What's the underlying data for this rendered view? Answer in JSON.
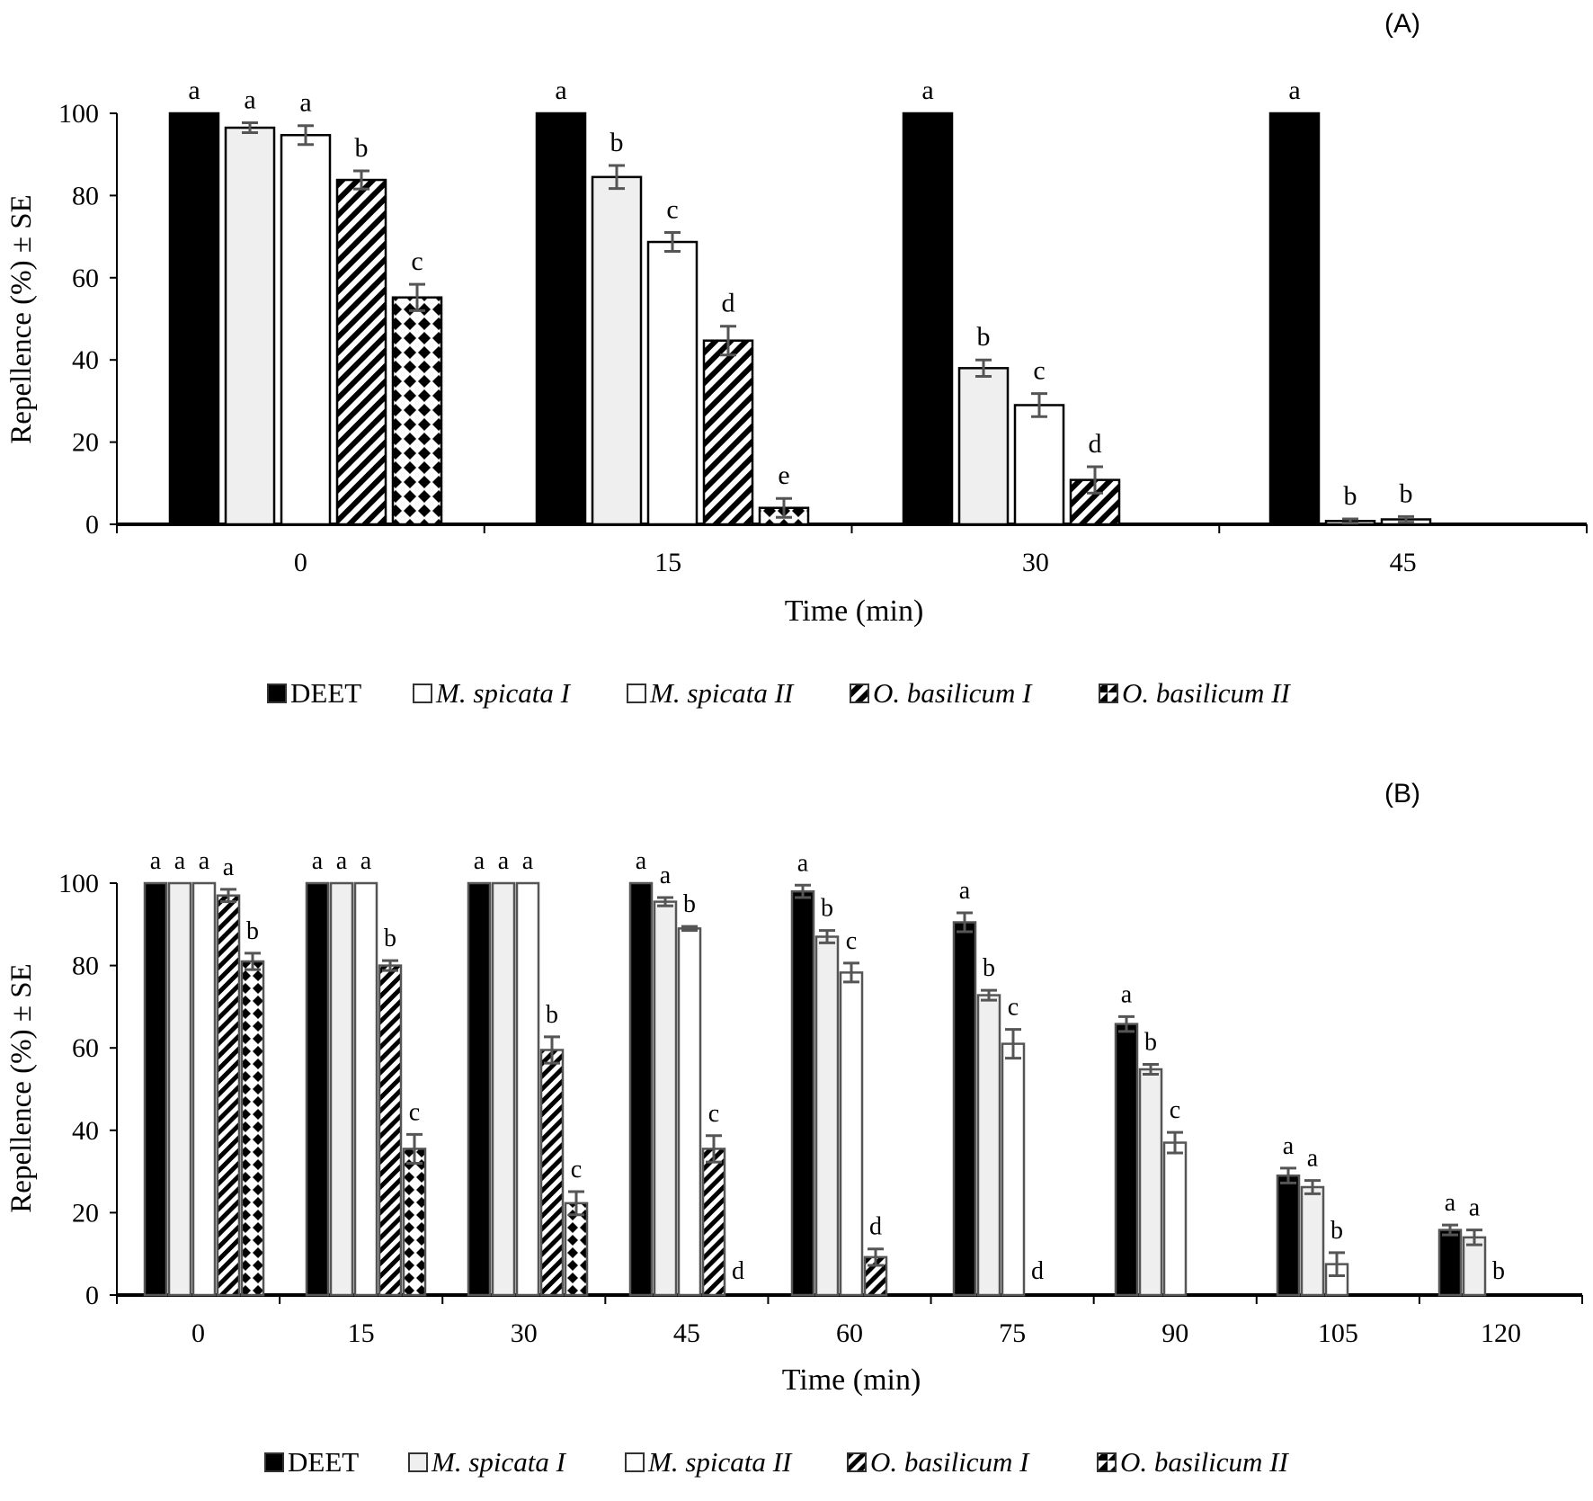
{
  "chart_data": [
    {
      "type": "bar",
      "panel_label": "(A)",
      "xlabel": "Time (min)",
      "ylabel": "Repellence (%) ± SE",
      "ylim": [
        0,
        100
      ],
      "yticks": [
        "0",
        "20",
        "40",
        "60",
        "80",
        "100"
      ],
      "categories": [
        "0",
        "15",
        "30",
        "45"
      ],
      "legend": [
        "DEET",
        "M. spicata I",
        "M. spicata II",
        "O. basilicum I",
        "O. basilicum II"
      ],
      "series": [
        {
          "name": "DEET",
          "values": [
            100,
            100,
            100,
            100
          ],
          "se": [
            0,
            0,
            0,
            0
          ],
          "letters": [
            "a",
            "a",
            "a",
            "a"
          ]
        },
        {
          "name": "M. spicata I",
          "values": [
            96.5,
            84.5,
            38,
            0.8
          ],
          "se": [
            1.2,
            2.8,
            2,
            0.5
          ],
          "letters": [
            "a",
            "b",
            "b",
            "b"
          ]
        },
        {
          "name": "M. spicata II",
          "values": [
            94.7,
            68.7,
            29,
            1.2
          ],
          "se": [
            2.3,
            2.3,
            2.8,
            0.7
          ],
          "letters": [
            "a",
            "c",
            "c",
            "b"
          ]
        },
        {
          "name": "O. basilicum I",
          "values": [
            83.8,
            44.7,
            10.8,
            null
          ],
          "se": [
            2.2,
            3.5,
            3.2,
            null
          ],
          "letters": [
            "b",
            "d",
            "d",
            null
          ]
        },
        {
          "name": "O. basilicum II",
          "values": [
            55.2,
            4,
            null,
            null
          ],
          "se": [
            3.2,
            2.3,
            null,
            null
          ],
          "letters": [
            "c",
            "e",
            null,
            null
          ]
        }
      ]
    },
    {
      "type": "bar",
      "panel_label": "(B)",
      "xlabel": "Time (min)",
      "ylabel": "Repellence (%) ± SE",
      "ylim": [
        0,
        100
      ],
      "yticks": [
        "0",
        "20",
        "40",
        "60",
        "80",
        "100"
      ],
      "categories": [
        "0",
        "15",
        "30",
        "45",
        "60",
        "75",
        "90",
        "105",
        "120"
      ],
      "legend": [
        "DEET",
        "M. spicata I",
        "M. spicata II",
        "O. basilicum I",
        "O. basilicum II"
      ],
      "series": [
        {
          "name": "DEET",
          "values": [
            100,
            100,
            100,
            100,
            98,
            90.5,
            65.8,
            29,
            15.8
          ],
          "se": [
            0,
            0,
            0,
            0,
            1.5,
            2.3,
            1.8,
            1.8,
            1.2
          ],
          "letters": [
            "a",
            "a",
            "a",
            "a",
            "a",
            "a",
            "a",
            "a",
            "a"
          ]
        },
        {
          "name": "M. spicata I",
          "values": [
            100,
            100,
            100,
            95.5,
            87,
            72.8,
            54.8,
            26.2,
            14
          ],
          "se": [
            0,
            0,
            0,
            1,
            1.5,
            1.2,
            1.2,
            1.6,
            1.8
          ],
          "letters": [
            "a",
            "a",
            "a",
            "a",
            "b",
            "b",
            "b",
            "a",
            "a"
          ]
        },
        {
          "name": "M. spicata II",
          "values": [
            100,
            100,
            100,
            89,
            78.3,
            61,
            37,
            7.5,
            null
          ],
          "se": [
            0,
            0,
            0,
            0.5,
            2.3,
            3.5,
            2.5,
            2.8,
            null
          ],
          "letters": [
            "a",
            "a",
            "a",
            "b",
            "c",
            "c",
            "c",
            "b",
            "b"
          ]
        },
        {
          "name": "O. basilicum I",
          "values": [
            97,
            80,
            59.5,
            35.5,
            9.2,
            null,
            null,
            null,
            null
          ],
          "se": [
            1.5,
            1.2,
            3.2,
            3.2,
            2,
            null,
            null,
            null,
            null
          ],
          "letters": [
            "a",
            "b",
            "b",
            "c",
            "d",
            "d",
            null,
            null,
            null
          ]
        },
        {
          "name": "O. basilicum II",
          "values": [
            81,
            35.5,
            22.3,
            null,
            null,
            null,
            null,
            null,
            null
          ],
          "se": [
            2,
            3.5,
            2.8,
            null,
            null,
            null,
            null,
            null,
            null
          ],
          "letters": [
            "b",
            "c",
            "c",
            "d",
            null,
            null,
            null,
            null,
            null
          ]
        }
      ]
    }
  ]
}
